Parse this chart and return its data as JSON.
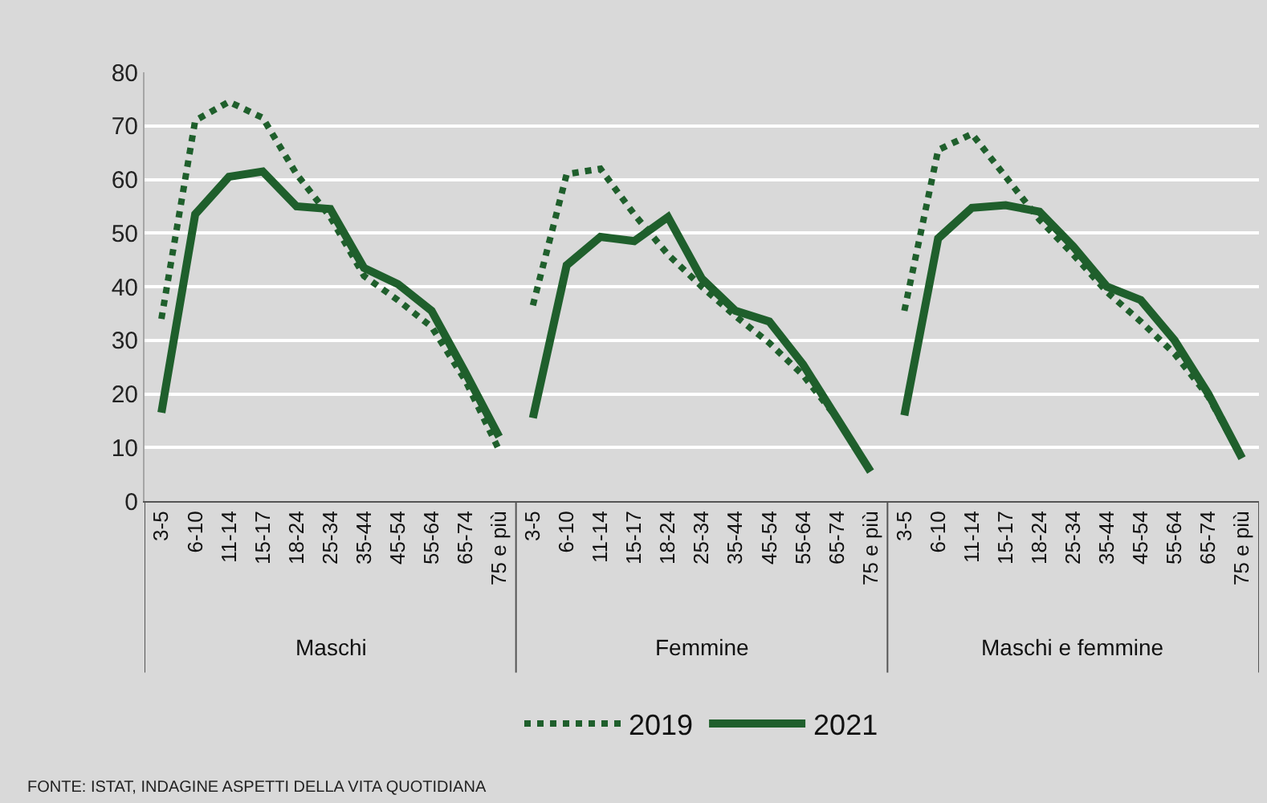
{
  "chart_data": {
    "type": "line",
    "categories": [
      "3-5",
      "6-10",
      "11-14",
      "15-17",
      "18-24",
      "25-34",
      "35-44",
      "45-54",
      "55-64",
      "65-74",
      "75 e più",
      "3-5",
      "6-10",
      "11-14",
      "15-17",
      "18-24",
      "25-34",
      "35-44",
      "45-54",
      "55-64",
      "65-74",
      "75 e più",
      "3-5",
      "6-10",
      "11-14",
      "15-17",
      "18-24",
      "25-34",
      "35-44",
      "45-54",
      "55-64",
      "65-74",
      "75 e più"
    ],
    "series": [
      {
        "name": "2019",
        "color": "#1f5f2c",
        "line_style": "dotted",
        "values": [
          34,
          71,
          74.5,
          71.5,
          61,
          53,
          42,
          37.5,
          32.5,
          22.5,
          9.5,
          null,
          null,
          null,
          null,
          null,
          null,
          null,
          null,
          null,
          null,
          null,
          null,
          null,
          null,
          null,
          null,
          null,
          null,
          null,
          null,
          null,
          null
        ]
      },
      {
        "color": "#1f5f2c",
        "line_style": "dotted",
        "values": [
          null,
          null,
          null,
          null,
          null,
          null,
          null,
          null,
          null,
          null,
          null,
          36.5,
          61,
          62,
          53.5,
          46,
          40,
          34.5,
          29.5,
          23.5,
          15.5,
          5.5,
          null,
          null,
          null,
          null,
          null,
          null,
          null,
          null,
          null,
          null,
          null
        ]
      },
      {
        "color": "#1f5f2c",
        "line_style": "dotted",
        "values": [
          null,
          null,
          null,
          null,
          null,
          null,
          null,
          null,
          null,
          null,
          null,
          null,
          null,
          null,
          null,
          null,
          null,
          null,
          null,
          null,
          null,
          null,
          35.5,
          65.5,
          68.5,
          60.5,
          52.5,
          46,
          39,
          33.5,
          27.5,
          19.5,
          8
        ]
      },
      {
        "name": "2021",
        "color": "#1f5f2c",
        "line_style": "solid",
        "values": [
          16.5,
          53.5,
          60.5,
          61.5,
          55,
          54.5,
          43.5,
          40.5,
          35.5,
          24,
          12,
          null,
          null,
          null,
          null,
          null,
          null,
          null,
          null,
          null,
          null,
          null,
          null,
          null,
          null,
          null,
          null,
          null,
          null,
          null,
          null,
          null,
          null
        ]
      },
      {
        "color": "#1f5f2c",
        "line_style": "solid",
        "values": [
          null,
          null,
          null,
          null,
          null,
          null,
          null,
          null,
          null,
          null,
          null,
          15.5,
          44,
          49.3,
          48.5,
          53,
          41.5,
          35.5,
          33.5,
          25.5,
          15.5,
          5.5,
          null,
          null,
          null,
          null,
          null,
          null,
          null,
          null,
          null,
          null,
          null
        ]
      },
      {
        "color": "#1f5f2c",
        "line_style": "solid",
        "values": [
          null,
          null,
          null,
          null,
          null,
          null,
          null,
          null,
          null,
          null,
          null,
          null,
          null,
          null,
          null,
          null,
          null,
          null,
          null,
          null,
          null,
          null,
          16,
          49,
          54.7,
          55.2,
          54,
          47.5,
          40,
          37.5,
          30,
          20,
          8
        ]
      }
    ],
    "ylim": [
      0,
      80
    ],
    "yticks": [
      0,
      10,
      20,
      30,
      40,
      50,
      60,
      70,
      80
    ],
    "grid": "y",
    "legend": "bottom",
    "marker": "none",
    "annotations": [
      "Maschi",
      "Femmine",
      "Maschi e femmine",
      "FONTE: ISTAT, INDAGINE ASPETTI DELLA VITA QUOTIDIANA"
    ]
  }
}
